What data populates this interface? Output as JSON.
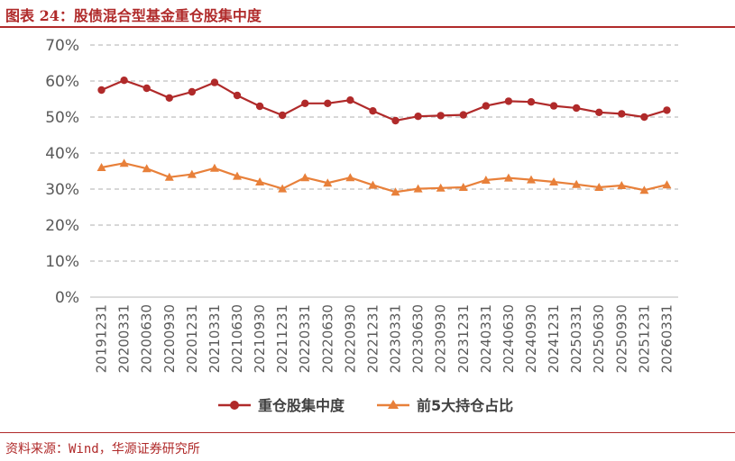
{
  "header": {
    "title": "图表 24：股债混合型基金重仓股集中度"
  },
  "footer": {
    "source": "资料来源：Wind，华源证券研究所"
  },
  "chart_data": {
    "type": "line",
    "title": "",
    "xlabel": "",
    "ylabel": "",
    "ylim": [
      0,
      70
    ],
    "yticks": [
      "0%",
      "10%",
      "20%",
      "30%",
      "40%",
      "50%",
      "60%",
      "70%"
    ],
    "grid": true,
    "legend_position": "bottom",
    "categories": [
      "20191231",
      "20200331",
      "20200630",
      "20200930",
      "20201231",
      "20210331",
      "20210630",
      "20210930",
      "20211231",
      "20220331",
      "20220630",
      "20220930",
      "20221231",
      "20230331",
      "20230630",
      "20230930",
      "20231231",
      "20240331",
      "20240630",
      "20240930",
      "20241231",
      "20250331",
      "20250630",
      "20250930",
      "20251231",
      "20260331"
    ],
    "series": [
      {
        "name": "重仓股集中度",
        "color": "#b02a2a",
        "marker": "circle",
        "values": [
          57.5,
          60.2,
          58.0,
          55.3,
          57.0,
          59.6,
          56.0,
          53.0,
          50.5,
          53.8,
          53.8,
          54.7,
          51.7,
          49.0,
          50.2,
          50.4,
          50.6,
          53.1,
          54.4,
          54.2,
          53.1,
          52.5,
          51.3,
          50.9,
          50.0,
          51.9
        ]
      },
      {
        "name": "前5大持仓占比",
        "color": "#e8803a",
        "marker": "triangle",
        "values": [
          36.0,
          37.2,
          35.7,
          33.3,
          34.1,
          35.8,
          33.6,
          32.0,
          30.1,
          33.2,
          31.7,
          33.2,
          31.1,
          29.2,
          30.1,
          30.3,
          30.5,
          32.5,
          33.1,
          32.6,
          32.0,
          31.3,
          30.5,
          31.0,
          29.7,
          31.2
        ]
      }
    ]
  }
}
